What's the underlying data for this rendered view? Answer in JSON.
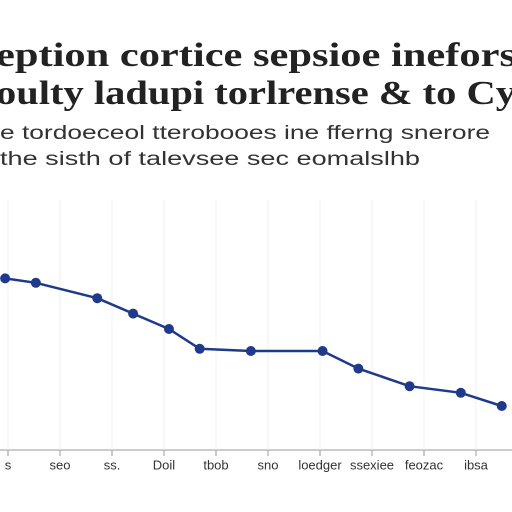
{
  "chart_data": {
    "type": "line",
    "title": [
      "eption cortice sepsioe inefors",
      "oulty ladupi torlrense & to Cy"
    ],
    "subtitle": [
      "e tordoeceol tterobooes ine fferng snerore",
      "the sisth of talevsee sec eomalslhb"
    ],
    "categories": [
      "s",
      "seo",
      "ss.",
      "Doil",
      "tbob",
      "sno",
      "loedger",
      "ssexiee",
      "feozac",
      "ibsa"
    ],
    "x": [
      1,
      7,
      19,
      26,
      33,
      39,
      49,
      63,
      70,
      80,
      90,
      98
    ],
    "xlim": [
      0,
      100
    ],
    "ylim": [
      0,
      100
    ],
    "series": [
      {
        "color": "#1f3a8a",
        "values": [
          78,
          76,
          69,
          62,
          55,
          46,
          45,
          45,
          37,
          29,
          26,
          20
        ]
      }
    ],
    "grid": true
  }
}
